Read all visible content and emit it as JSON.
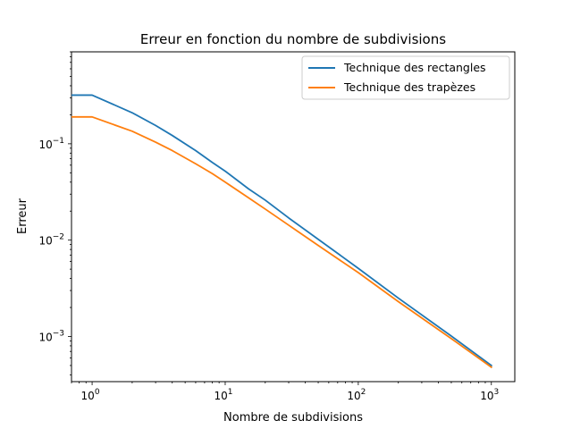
{
  "chart_data": {
    "type": "line",
    "title": "Erreur en fonction du nombre de subdivisions",
    "xlabel": "Nombre de subdivisions",
    "ylabel": "Erreur",
    "xscale": "log",
    "yscale": "log",
    "xlim": [
      0.7,
      1500
    ],
    "ylim": [
      0.00034,
      0.9
    ],
    "grid": false,
    "legend_position": "upper-right",
    "x_ticks": [
      {
        "value": 1,
        "base": "10",
        "exp": "0"
      },
      {
        "value": 10,
        "base": "10",
        "exp": "1"
      },
      {
        "value": 100,
        "base": "10",
        "exp": "2"
      },
      {
        "value": 1000,
        "base": "10",
        "exp": "3"
      }
    ],
    "y_ticks": [
      {
        "value": 0.001,
        "base": "10",
        "exp": "−3"
      },
      {
        "value": 0.01,
        "base": "10",
        "exp": "−2"
      },
      {
        "value": 0.1,
        "base": "10",
        "exp": "−1"
      }
    ],
    "series": [
      {
        "name": "Technique des rectangles",
        "color": "#1f77b4",
        "x": [
          0.7,
          1,
          2,
          3,
          4,
          6,
          8,
          10,
          15,
          20,
          30,
          50,
          100,
          200,
          500,
          1000
        ],
        "y": [
          0.32,
          0.32,
          0.21,
          0.155,
          0.122,
          0.085,
          0.064,
          0.052,
          0.034,
          0.026,
          0.017,
          0.0102,
          0.0051,
          0.0025,
          0.00101,
          0.0005
        ]
      },
      {
        "name": "Technique des trapèzes",
        "color": "#ff7f0e",
        "x": [
          0.7,
          1,
          2,
          3,
          4,
          6,
          8,
          10,
          15,
          20,
          30,
          50,
          100,
          200,
          500,
          1000
        ],
        "y": [
          0.19,
          0.19,
          0.135,
          0.104,
          0.085,
          0.062,
          0.049,
          0.04,
          0.0275,
          0.021,
          0.0143,
          0.0088,
          0.0046,
          0.0023,
          0.00095,
          0.00048
        ]
      }
    ]
  }
}
